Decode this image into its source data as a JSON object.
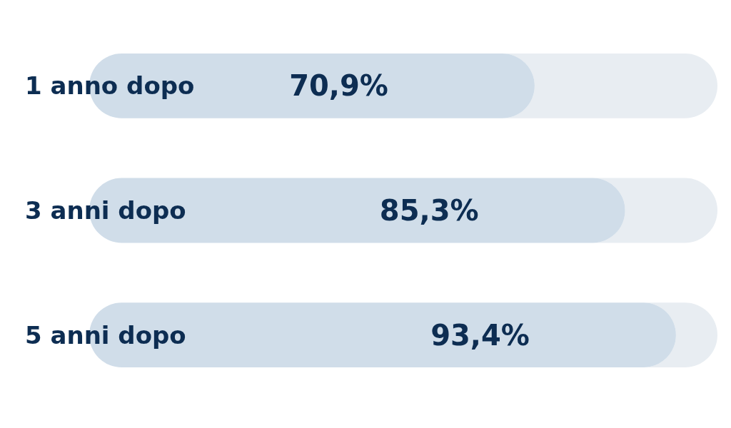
{
  "chart_data": {
    "type": "bar",
    "orientation": "horizontal",
    "categories": [
      "1 anno dopo",
      "3 anni dopo",
      "5 anni dopo"
    ],
    "values": [
      70.9,
      85.3,
      93.4
    ],
    "value_labels": [
      "70,9%",
      "85,3%",
      "93,4%"
    ],
    "color": "#d0dde9",
    "xlim": [
      0,
      100
    ],
    "tick_labels": "y"
  }
}
